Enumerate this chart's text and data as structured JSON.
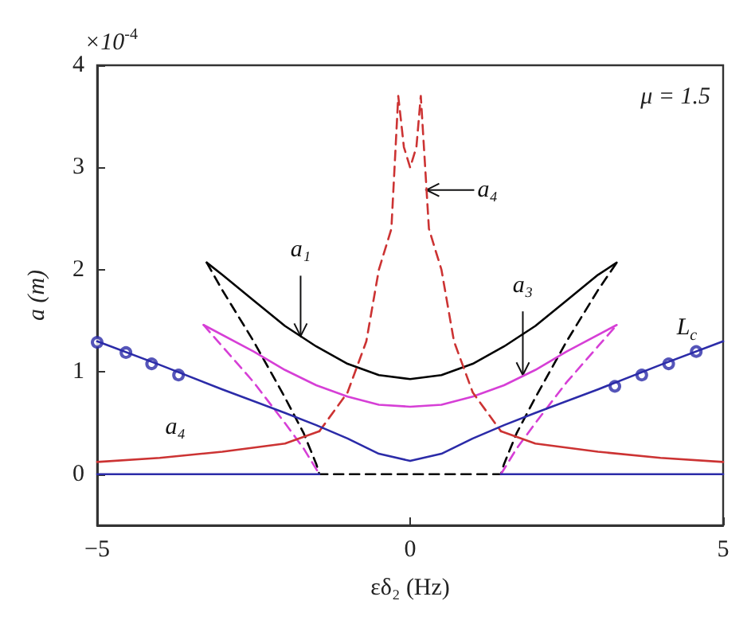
{
  "chart_data": {
    "type": "line",
    "xlabel": "εδ₂ (Hz)",
    "ylabel": "a (m)",
    "xlim": [
      -5,
      5
    ],
    "xticks": [
      -5,
      0,
      5
    ],
    "ylim": [
      -0.5,
      4
    ],
    "yticks": [
      0,
      1,
      2,
      3,
      4
    ],
    "marker": "none",
    "series": [
      {
        "color": "#000000",
        "line_style": "solid",
        "x": [
          -3.25,
          -3,
          -2.5,
          -2,
          -1.5,
          -1,
          -0.5,
          0,
          0.5,
          1,
          1.5,
          2,
          2.5,
          3,
          3.3
        ],
        "values": [
          2.07,
          1.95,
          1.7,
          1.45,
          1.25,
          1.08,
          0.97,
          0.93,
          0.97,
          1.08,
          1.25,
          1.45,
          1.7,
          1.95,
          2.07
        ]
      },
      {
        "color": "#000000",
        "line_style": "dashed",
        "x": [
          -3.25,
          -3,
          -2.5,
          -2,
          -1.7,
          -1.5,
          -1.45,
          1.45,
          1.5,
          1.7,
          2,
          2.5,
          3,
          3.3
        ],
        "values": [
          2.07,
          1.8,
          1.3,
          0.75,
          0.4,
          0.1,
          0,
          0,
          0.1,
          0.4,
          0.75,
          1.3,
          1.8,
          2.07
        ]
      },
      {
        "color": "#d63fd6",
        "line_style": "solid",
        "x": [
          -3.3,
          -2.5,
          -2,
          -1.5,
          -1,
          -0.5,
          0,
          0.5,
          1,
          1.5,
          2,
          2.5,
          3.3
        ],
        "values": [
          1.46,
          1.2,
          1.02,
          0.87,
          0.76,
          0.68,
          0.66,
          0.68,
          0.76,
          0.87,
          1.02,
          1.2,
          1.46
        ]
      },
      {
        "color": "#d63fd6",
        "line_style": "dashed",
        "x": [
          -3.3,
          -3,
          -2.5,
          -2,
          -1.7,
          -1.45,
          0,
          1.45,
          1.7,
          2,
          2.5,
          3,
          3.3
        ],
        "values": [
          1.46,
          1.25,
          0.9,
          0.5,
          0.25,
          0,
          null,
          0,
          0.25,
          0.5,
          0.9,
          1.25,
          1.46
        ]
      },
      {
        "color": "#cc3333",
        "line_style": "solid",
        "x": [
          -5,
          -4,
          -3,
          -2,
          -1.45,
          0,
          1.45,
          2,
          3,
          4,
          5
        ],
        "values": [
          0.12,
          0.16,
          0.22,
          0.3,
          0.42,
          null,
          0.42,
          0.3,
          0.22,
          0.16,
          0.12
        ]
      },
      {
        "color": "#cc3333",
        "line_style": "dashed",
        "x": [
          -1.45,
          -1,
          -0.7,
          -0.5,
          -0.3,
          -0.19,
          -0.1,
          0,
          0.1,
          0.17,
          0.3,
          0.5,
          0.7,
          1,
          1.45
        ],
        "values": [
          0.42,
          0.8,
          1.3,
          2,
          2.4,
          3.7,
          3.2,
          3,
          3.2,
          3.7,
          2.4,
          2,
          1.3,
          0.8,
          0.42
        ]
      },
      {
        "color": "#2b2ba8",
        "line_style": "solid",
        "x": [
          -5,
          -4,
          -3,
          -2,
          -1.5,
          -1,
          -0.5,
          0,
          0.5,
          1,
          1.5,
          2,
          3,
          4,
          5
        ],
        "values": [
          1.3,
          1.07,
          0.83,
          0.6,
          0.48,
          0.35,
          0.2,
          0.13,
          0.2,
          0.35,
          0.48,
          0.6,
          0.83,
          1.07,
          1.3
        ]
      },
      {
        "color": "#2b2ba8",
        "line_style": "solid",
        "x": [
          -5,
          -1.45,
          0,
          1.45,
          5
        ],
        "values": [
          0,
          0,
          null,
          0,
          0
        ]
      },
      {
        "type": "scatter",
        "marker": "circle",
        "color": "#2b2ba8",
        "x": [
          -5,
          -4.54,
          -4.13,
          -3.7,
          3.27,
          3.7,
          4.13,
          4.57
        ],
        "values": [
          1.29,
          1.19,
          1.08,
          0.97,
          0.86,
          0.97,
          1.08,
          1.2
        ]
      }
    ],
    "annotations": [
      {
        "text": "a₁",
        "x": -1.75,
        "y": 1.35
      },
      {
        "text": "a₃",
        "x": 1.8,
        "y": 0.97
      },
      {
        "text": "a₄",
        "x": 0.26,
        "y": 2.78
      },
      {
        "text": "a₄",
        "x": -3.75,
        "y": 0.18
      },
      {
        "text": "L$_{c}$",
        "x": 4.42,
        "y": 1.18
      },
      "μ = 1.5",
      "×10$^{-4}$"
    ]
  }
}
